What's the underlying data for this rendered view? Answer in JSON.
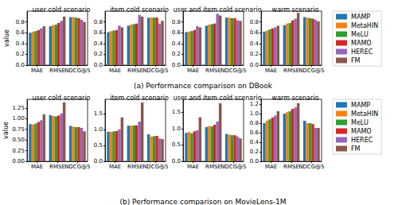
{
  "captions": [
    "(a) Performance comparison on DBook",
    "(b) Performance comparison on MovieLens-1M"
  ],
  "chart_data": [
    {
      "type": "bar",
      "title": "user cold scenario",
      "ylabel": "value",
      "categories": [
        "MAE",
        "RMSE",
        "NDCG@5"
      ],
      "ylim": [
        0,
        1.0
      ],
      "yticks": [
        {
          "value": 0,
          "label": "0.0"
        },
        0.2,
        0.4,
        0.6,
        0.8
      ],
      "grid": false,
      "series": [
        {
          "name": "MAMP",
          "color": "#1f77b4",
          "values": [
            0.6,
            0.72,
            0.89
          ]
        },
        {
          "name": "MetaHIN",
          "color": "#ff7f0e",
          "values": [
            0.62,
            0.74,
            0.89
          ]
        },
        {
          "name": "MeLU",
          "color": "#2ca02c",
          "values": [
            0.63,
            0.75,
            0.88
          ]
        },
        {
          "name": "MAMO",
          "color": "#d62728",
          "values": [
            0.65,
            0.78,
            0.87
          ]
        },
        {
          "name": "HEREC",
          "color": "#9467bd",
          "values": [
            0.68,
            0.82,
            0.84
          ]
        },
        {
          "name": "FM",
          "color": "#8c564b",
          "values": [
            0.72,
            0.9,
            0.8
          ]
        }
      ]
    },
    {
      "type": "bar",
      "title": "item cold scenario",
      "categories": [
        "MAE",
        "RMSE",
        "NDCG@5"
      ],
      "ylim": [
        0,
        1.0
      ],
      "yticks": [
        {
          "value": 0,
          "label": "0.0"
        },
        0.2,
        0.4,
        0.6,
        0.8
      ],
      "grid": false,
      "series": [
        {
          "name": "MAMP",
          "color": "#1f77b4",
          "values": [
            0.61,
            0.73,
            0.88
          ]
        },
        {
          "name": "MetaHIN",
          "color": "#ff7f0e",
          "values": [
            0.63,
            0.75,
            0.88
          ]
        },
        {
          "name": "MeLU",
          "color": "#2ca02c",
          "values": [
            0.64,
            0.76,
            0.88
          ]
        },
        {
          "name": "MAMO",
          "color": "#d62728",
          "values": [
            0.65,
            0.77,
            0.88
          ]
        },
        {
          "name": "HEREC",
          "color": "#9467bd",
          "values": [
            0.73,
            0.93,
            0.77
          ]
        },
        {
          "name": "FM",
          "color": "#8c564b",
          "values": [
            0.7,
            0.9,
            0.82
          ]
        }
      ]
    },
    {
      "type": "bar",
      "title": "user and item cold scenario",
      "categories": [
        "MAE",
        "RMSE",
        "NDCG@5"
      ],
      "ylim": [
        0,
        1.0
      ],
      "yticks": [
        {
          "value": 0,
          "label": "0.0"
        },
        0.2,
        0.4,
        0.6,
        0.8
      ],
      "grid": false,
      "series": [
        {
          "name": "MAMP",
          "color": "#1f77b4",
          "values": [
            0.61,
            0.73,
            0.88
          ]
        },
        {
          "name": "MetaHIN",
          "color": "#ff7f0e",
          "values": [
            0.62,
            0.75,
            0.88
          ]
        },
        {
          "name": "MeLU",
          "color": "#2ca02c",
          "values": [
            0.63,
            0.76,
            0.87
          ]
        },
        {
          "name": "MAMO",
          "color": "#d62728",
          "values": [
            0.65,
            0.77,
            0.87
          ]
        },
        {
          "name": "HEREC",
          "color": "#9467bd",
          "values": [
            0.72,
            0.95,
            0.83
          ]
        },
        {
          "name": "FM",
          "color": "#8c564b",
          "values": [
            0.7,
            0.92,
            0.82
          ]
        }
      ]
    },
    {
      "type": "bar",
      "title": "warm scenario",
      "categories": [
        "MAE",
        "RMSE",
        "NDCG@5"
      ],
      "legend": "right",
      "ylim": [
        0,
        1.0
      ],
      "yticks": [
        {
          "value": 0,
          "label": "0.0"
        },
        0.2,
        0.4,
        0.6,
        0.8
      ],
      "grid": false,
      "series": [
        {
          "name": "MAMP",
          "color": "#1f77b4",
          "values": [
            0.62,
            0.74,
            0.89
          ]
        },
        {
          "name": "MetaHIN",
          "color": "#ff7f0e",
          "values": [
            0.64,
            0.77,
            0.88
          ]
        },
        {
          "name": "MeLU",
          "color": "#2ca02c",
          "values": [
            0.66,
            0.78,
            0.87
          ]
        },
        {
          "name": "MAMO",
          "color": "#d62728",
          "values": [
            0.68,
            0.83,
            0.86
          ]
        },
        {
          "name": "HEREC",
          "color": "#9467bd",
          "values": [
            0.7,
            0.86,
            0.84
          ]
        },
        {
          "name": "FM",
          "color": "#8c564b",
          "values": [
            0.73,
            0.97,
            0.81
          ]
        }
      ]
    },
    {
      "type": "bar",
      "title": "user cold scenario",
      "ylabel": "value",
      "categories": [
        "MAE",
        "RMSE",
        "NDCG@5"
      ],
      "ylim": [
        0,
        1.45
      ],
      "yticks": [
        {
          "value": 0,
          "label": "0.00"
        },
        0.25,
        {
          "value": 0.5,
          "label": "0.50"
        },
        0.75,
        {
          "value": 1,
          "label": "1.00"
        },
        1.25
      ],
      "grid": false,
      "series": [
        {
          "name": "MAMP",
          "color": "#1f77b4",
          "values": [
            0.87,
            1.08,
            0.83
          ]
        },
        {
          "name": "MetaHIN",
          "color": "#ff7f0e",
          "values": [
            0.86,
            1.06,
            0.81
          ]
        },
        {
          "name": "MeLU",
          "color": "#2ca02c",
          "values": [
            0.88,
            1.05,
            0.8
          ]
        },
        {
          "name": "MAMO",
          "color": "#d62728",
          "values": [
            0.92,
            1.07,
            0.8
          ]
        },
        {
          "name": "HEREC",
          "color": "#9467bd",
          "values": [
            0.96,
            1.12,
            0.78
          ]
        },
        {
          "name": "FM",
          "color": "#8c564b",
          "values": [
            1.1,
            1.38,
            0.7
          ]
        }
      ]
    },
    {
      "type": "bar",
      "title": "item cold scenario",
      "categories": [
        "MAE",
        "RMSE",
        "NDCG@5"
      ],
      "ylim": [
        0,
        1.95
      ],
      "yticks": [
        {
          "value": 0,
          "label": "0.0"
        },
        0.5,
        {
          "value": 1,
          "label": "1.0"
        },
        1.5
      ],
      "grid": false,
      "series": [
        {
          "name": "MAMP",
          "color": "#1f77b4",
          "values": [
            0.93,
            1.12,
            0.85
          ]
        },
        {
          "name": "MetaHIN",
          "color": "#ff7f0e",
          "values": [
            0.93,
            1.12,
            0.78
          ]
        },
        {
          "name": "MeLU",
          "color": "#2ca02c",
          "values": [
            0.94,
            1.13,
            0.79
          ]
        },
        {
          "name": "MAMO",
          "color": "#d62728",
          "values": [
            0.95,
            1.13,
            0.8
          ]
        },
        {
          "name": "HEREC",
          "color": "#9467bd",
          "values": [
            1.0,
            1.25,
            0.72
          ]
        },
        {
          "name": "FM",
          "color": "#8c564b",
          "values": [
            1.38,
            1.85,
            0.7
          ]
        }
      ]
    },
    {
      "type": "bar",
      "title": "user and item cold scenario",
      "categories": [
        "MAE",
        "RMSE",
        "NDCG@5"
      ],
      "ylim": [
        0,
        1.9
      ],
      "yticks": [
        {
          "value": 0,
          "label": "0.0"
        },
        0.5,
        {
          "value": 1,
          "label": "1.0"
        },
        1.5
      ],
      "grid": false,
      "series": [
        {
          "name": "MAMP",
          "color": "#1f77b4",
          "values": [
            0.87,
            1.05,
            0.84
          ]
        },
        {
          "name": "MetaHIN",
          "color": "#ff7f0e",
          "values": [
            0.9,
            1.08,
            0.82
          ]
        },
        {
          "name": "MeLU",
          "color": "#2ca02c",
          "values": [
            0.86,
            1.07,
            0.8
          ]
        },
        {
          "name": "MAMO",
          "color": "#d62728",
          "values": [
            0.92,
            1.12,
            0.8
          ]
        },
        {
          "name": "HEREC",
          "color": "#9467bd",
          "values": [
            0.95,
            1.22,
            0.76
          ]
        },
        {
          "name": "FM",
          "color": "#8c564b",
          "values": [
            1.35,
            1.78,
            0.7
          ]
        }
      ]
    },
    {
      "type": "bar",
      "title": "warm scenario",
      "categories": [
        "MAE",
        "RMSE",
        "NDCG@5"
      ],
      "legend": "right",
      "ylim": [
        0,
        1.3
      ],
      "yticks": [
        {
          "value": 0,
          "label": "0.0"
        },
        0.2,
        0.4,
        0.6,
        0.8,
        {
          "value": 1,
          "label": "1.0"
        },
        1.2
      ],
      "grid": false,
      "series": [
        {
          "name": "MAMP",
          "color": "#1f77b4",
          "values": [
            0.8,
            1.0,
            0.85
          ]
        },
        {
          "name": "MetaHIN",
          "color": "#ff7f0e",
          "values": [
            0.85,
            1.03,
            0.8
          ]
        },
        {
          "name": "MeLU",
          "color": "#2ca02c",
          "values": [
            0.88,
            1.05,
            0.8
          ]
        },
        {
          "name": "MAMO",
          "color": "#d62728",
          "values": [
            0.92,
            1.1,
            0.78
          ]
        },
        {
          "name": "HEREC",
          "color": "#9467bd",
          "values": [
            0.96,
            1.13,
            0.7
          ]
        },
        {
          "name": "FM",
          "color": "#8c564b",
          "values": [
            1.05,
            1.22,
            0.7
          ]
        }
      ]
    }
  ]
}
